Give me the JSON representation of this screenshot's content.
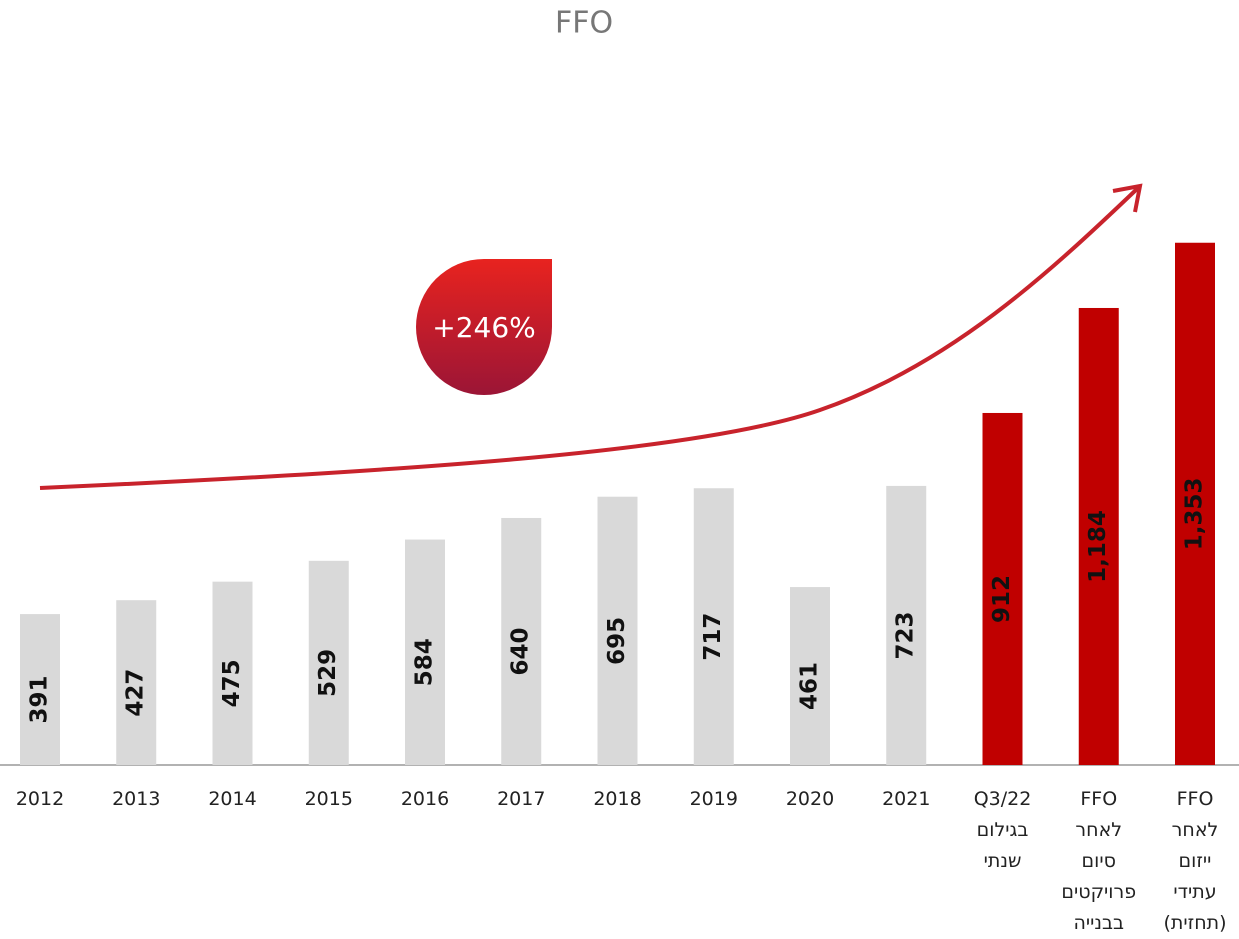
{
  "chart_data": {
    "type": "bar",
    "title": "FFO",
    "annotation": "+246%",
    "categories": [
      "2012",
      "2013",
      "2014",
      "2015",
      "2016",
      "2017",
      "2018",
      "2019",
      "2020",
      "2021",
      "Q3/22 בגילום שנתי",
      "FFO לאחר סיום פרויקטים בבנייה",
      "FFO לאחר ייזום עתידי (תחזית)"
    ],
    "values": [
      391,
      427,
      475,
      529,
      584,
      640,
      695,
      717,
      461,
      723,
      912,
      1184,
      1353
    ],
    "value_labels": [
      "391",
      "427",
      "475",
      "529",
      "584",
      "640",
      "695",
      "717",
      "461",
      "723",
      "912",
      "1,184",
      "1,353"
    ],
    "colors": [
      "#d9d9d9",
      "#d9d9d9",
      "#d9d9d9",
      "#d9d9d9",
      "#d9d9d9",
      "#d9d9d9",
      "#d9d9d9",
      "#d9d9d9",
      "#d9d9d9",
      "#d9d9d9",
      "#c00000",
      "#c00000",
      "#c00000"
    ]
  }
}
